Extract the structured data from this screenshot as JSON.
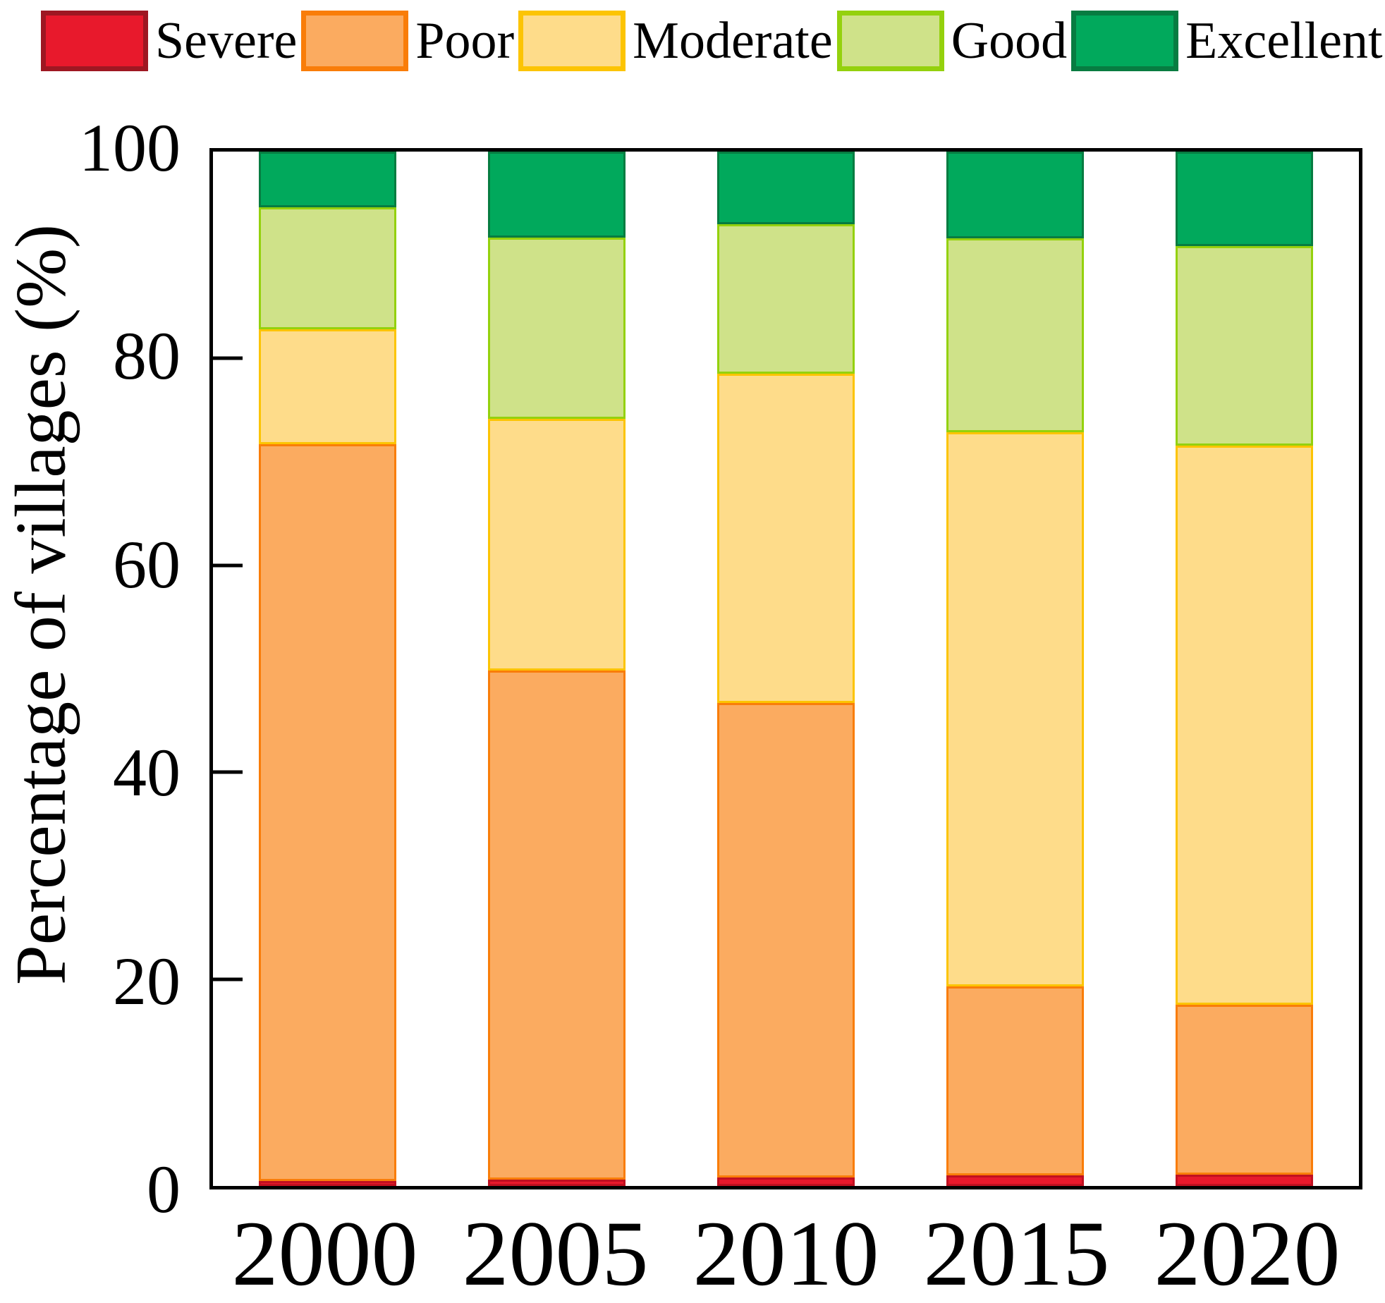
{
  "legend": {
    "items": [
      {
        "label": "Severe",
        "fill": "#e8192c",
        "border": "#9e1722"
      },
      {
        "label": "Poor",
        "fill": "#fbab60",
        "border": "#f97d09"
      },
      {
        "label": "Moderate",
        "fill": "#fedc8a",
        "border": "#fcc403"
      },
      {
        "label": "Good",
        "fill": "#cfe289",
        "border": "#94d10d"
      },
      {
        "label": "Excellent",
        "fill": "#01a95c",
        "border": "#077c41"
      }
    ]
  },
  "chart_data": {
    "type": "bar",
    "stacked": true,
    "categories": [
      "2000",
      "2005",
      "2010",
      "2015",
      "2020"
    ],
    "series": [
      {
        "name": "Severe",
        "fill": "#e8192c",
        "border": "#c01020",
        "values": [
          0.5,
          0.6,
          0.8,
          1.0,
          1.1
        ]
      },
      {
        "name": "Poor",
        "fill": "#fbab60",
        "border": "#f97d09",
        "values": [
          71.2,
          49.2,
          45.9,
          18.3,
          16.4
        ]
      },
      {
        "name": "Moderate",
        "fill": "#fedc8a",
        "border": "#fcc403",
        "values": [
          11.1,
          24.4,
          31.8,
          53.6,
          54.1
        ]
      },
      {
        "name": "Good",
        "fill": "#cfe289",
        "border": "#94d10d",
        "values": [
          11.8,
          17.5,
          14.5,
          18.7,
          19.3
        ]
      },
      {
        "name": "Excellent",
        "fill": "#01a95c",
        "border": "#077c41",
        "values": [
          5.4,
          8.3,
          7.0,
          8.4,
          9.1
        ]
      }
    ],
    "title": "",
    "xlabel": "",
    "ylabel": "Percentage of villages (%)",
    "ylim": [
      0,
      100
    ],
    "yticks": [
      0,
      20,
      40,
      60,
      80,
      100
    ],
    "grid": false,
    "legend_position": "top"
  }
}
